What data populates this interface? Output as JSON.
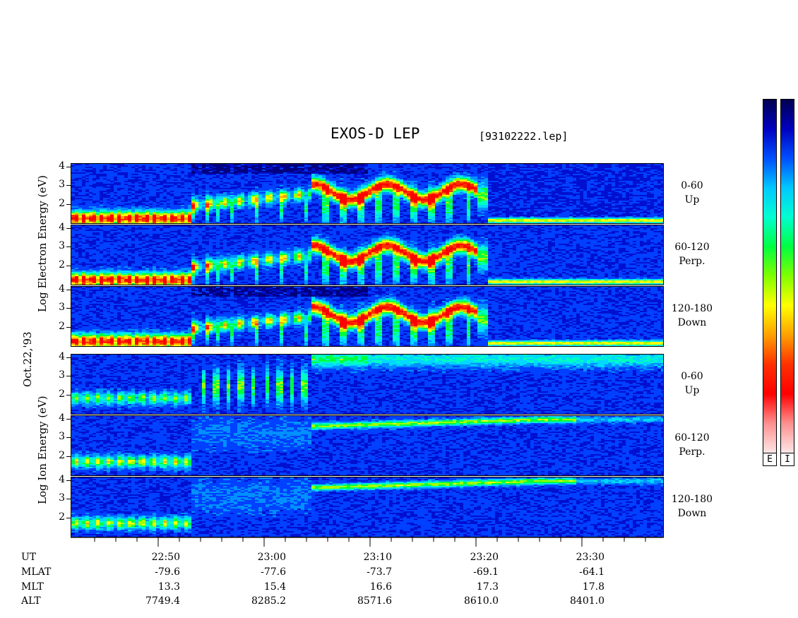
{
  "header": {
    "title": "EXOS-D LEP",
    "file": "[93102222.lep]"
  },
  "chart_data": {
    "type": "heatmap",
    "title": "EXOS-D LEP",
    "date_label": "Oct.22,'93",
    "x_time_range": [
      "22:42",
      "23:37"
    ],
    "electron_axis_label": "Log Electron Energy (eV)",
    "ion_axis_label": "Log Ion Energy (eV)",
    "ytick_labels": [
      "4",
      "3",
      "2"
    ],
    "ylim": [
      1,
      4.1
    ],
    "panels": [
      {
        "species": "electron",
        "range": "0-60",
        "direction": "Up"
      },
      {
        "species": "electron",
        "range": "60-120",
        "direction": "Perp."
      },
      {
        "species": "electron",
        "range": "120-180",
        "direction": "Down"
      },
      {
        "species": "ion",
        "range": "0-60",
        "direction": "Up"
      },
      {
        "species": "ion",
        "range": "60-120",
        "direction": "Perp."
      },
      {
        "species": "ion",
        "range": "120-180",
        "direction": "Down"
      }
    ],
    "colorbar_labels": [
      "E",
      "I"
    ],
    "colormap": [
      "#000050",
      "#0000c0",
      "#0050ff",
      "#00c8ff",
      "#00ffd0",
      "#00ff40",
      "#80ff00",
      "#ffff00",
      "#ffa000",
      "#ff3000",
      "#ff0000",
      "#ff9090",
      "#ffe6e6"
    ],
    "orbit_table": {
      "row_labels": [
        "UT",
        "MLAT",
        "MLT",
        "ALT"
      ],
      "columns": [
        {
          "UT": "22:50",
          "MLAT": "-79.6",
          "MLT": "13.3",
          "ALT": "7749.4"
        },
        {
          "UT": "23:00",
          "MLAT": "-77.6",
          "MLT": "15.4",
          "ALT": "8285.2"
        },
        {
          "UT": "23:10",
          "MLAT": "-73.7",
          "MLT": "16.6",
          "ALT": "8571.6"
        },
        {
          "UT": "23:20",
          "MLAT": "-69.1",
          "MLT": "17.3",
          "ALT": "8610.0"
        },
        {
          "UT": "23:30",
          "MLAT": "-64.1",
          "MLT": "17.8",
          "ALT": "8401.0"
        }
      ]
    }
  }
}
